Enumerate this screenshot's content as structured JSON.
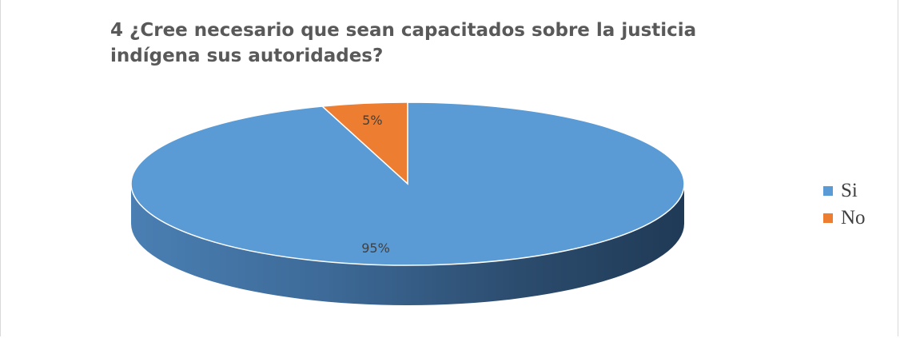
{
  "chart_data": {
    "type": "pie",
    "title_lines": [
      "4 ¿Cree necesario que sean capacitados sobre la justicia",
      "indígena sus autoridades?"
    ],
    "categories": [
      "Si",
      "No"
    ],
    "values": [
      95,
      5
    ],
    "data_labels": [
      "95%",
      "5%"
    ],
    "colors": [
      "#5B9BD5",
      "#ED7D31"
    ],
    "style": "3d",
    "legend_position": "right"
  }
}
